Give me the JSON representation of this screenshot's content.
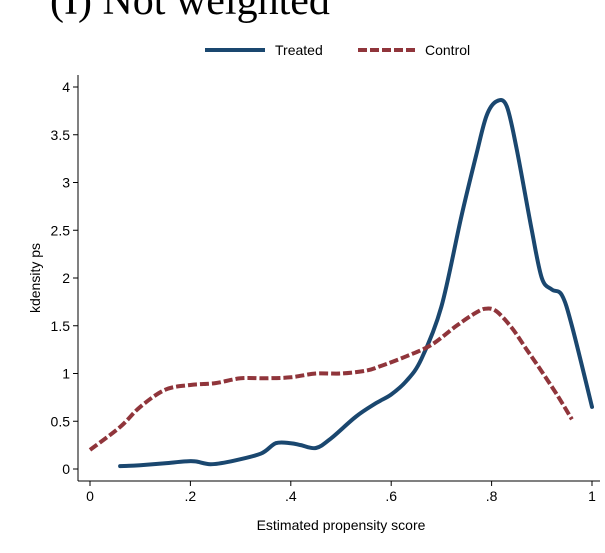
{
  "title": "(I) Not weighted",
  "chart_data": {
    "type": "line",
    "title": "(I) Not weighted",
    "xlabel": "Estimated propensity score",
    "ylabel": "kdensity ps",
    "xlim": [
      0,
      1
    ],
    "ylim": [
      0,
      4
    ],
    "xticks": [
      0,
      0.2,
      0.4,
      0.6,
      0.8,
      1
    ],
    "xtick_labels": [
      "0",
      ".2",
      ".4",
      ".6",
      ".8",
      "1"
    ],
    "yticks": [
      0,
      0.5,
      1,
      1.5,
      2,
      2.5,
      3,
      3.5,
      4
    ],
    "ytick_labels": [
      "0",
      "0.5",
      "1",
      "1.5",
      "2",
      "2.5",
      "3",
      "3.5",
      "4"
    ],
    "grid": false,
    "legend_position": "top",
    "series": [
      {
        "name": "Treated",
        "color": "#1a476f",
        "style": "solid",
        "x": [
          0.06,
          0.1,
          0.15,
          0.19,
          0.21,
          0.24,
          0.28,
          0.34,
          0.37,
          0.4,
          0.42,
          0.45,
          0.48,
          0.53,
          0.57,
          0.6,
          0.63,
          0.66,
          0.7,
          0.74,
          0.77,
          0.79,
          0.81,
          0.83,
          0.85,
          0.88,
          0.9,
          0.92,
          0.94,
          0.96,
          1.0
        ],
        "y": [
          0.03,
          0.04,
          0.06,
          0.08,
          0.08,
          0.05,
          0.08,
          0.16,
          0.27,
          0.27,
          0.25,
          0.22,
          0.32,
          0.55,
          0.69,
          0.78,
          0.92,
          1.15,
          1.7,
          2.65,
          3.3,
          3.7,
          3.85,
          3.8,
          3.35,
          2.5,
          2.0,
          1.88,
          1.82,
          1.5,
          0.65
        ]
      },
      {
        "name": "Control",
        "color": "#90353b",
        "style": "dashed",
        "x": [
          0.0,
          0.06,
          0.1,
          0.15,
          0.2,
          0.25,
          0.3,
          0.35,
          0.4,
          0.45,
          0.5,
          0.55,
          0.58,
          0.63,
          0.68,
          0.73,
          0.77,
          0.79,
          0.81,
          0.84,
          0.87,
          0.9,
          0.93,
          0.96
        ],
        "y": [
          0.2,
          0.44,
          0.65,
          0.83,
          0.88,
          0.9,
          0.95,
          0.95,
          0.96,
          1.0,
          1.0,
          1.03,
          1.08,
          1.18,
          1.3,
          1.5,
          1.64,
          1.68,
          1.65,
          1.48,
          1.25,
          1.02,
          0.78,
          0.52
        ]
      }
    ]
  }
}
